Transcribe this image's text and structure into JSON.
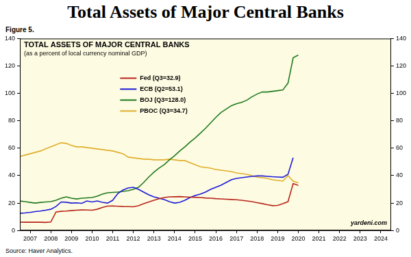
{
  "chart_data": {
    "type": "line",
    "title": "Total Assets of Major Central Banks",
    "figure_label": "Figure 5.",
    "chart_title": "TOTAL ASSETS OF MAJOR CENTRAL BANKS",
    "subtitle": "(as a percent of local currency nominal GDP)",
    "source": "Source: Haver Analytics.",
    "annotations": [
      "yardeni.com"
    ],
    "x": [
      2007,
      2007.25,
      2007.5,
      2007.75,
      2008,
      2008.25,
      2008.5,
      2008.75,
      2009,
      2009.25,
      2009.5,
      2009.75,
      2010,
      2010.25,
      2010.5,
      2010.75,
      2011,
      2011.25,
      2011.5,
      2011.75,
      2012,
      2012.25,
      2012.5,
      2012.75,
      2013,
      2013.25,
      2013.5,
      2013.75,
      2014,
      2014.25,
      2014.5,
      2014.75,
      2015,
      2015.25,
      2015.5,
      2015.75,
      2016,
      2016.25,
      2016.5,
      2016.75,
      2017,
      2017.25,
      2017.5,
      2017.75,
      2018,
      2018.25,
      2018.5,
      2018.75,
      2019,
      2019.25,
      2019.5,
      2019.75,
      2020,
      2020.25,
      2020.5
    ],
    "series": [
      {
        "name": "Fed (Q3=32.9)",
        "color": "#b8231b",
        "values": [
          6.1,
          6.0,
          6.0,
          6.1,
          6.0,
          5.9,
          6.2,
          13.5,
          14.0,
          14.2,
          14.5,
          14.8,
          15.0,
          14.9,
          14.8,
          15.5,
          16.8,
          17.8,
          17.9,
          17.7,
          17.5,
          17.4,
          17.3,
          18.0,
          19.5,
          20.8,
          22.0,
          23.2,
          24.0,
          24.5,
          24.6,
          24.7,
          24.5,
          24.3,
          24.2,
          24.0,
          23.7,
          23.5,
          23.2,
          23.0,
          22.8,
          22.6,
          22.4,
          22.0,
          21.5,
          21.0,
          20.3,
          19.6,
          18.8,
          18.1,
          18.3,
          19.5,
          21.0,
          34.2,
          32.9
        ]
      },
      {
        "name": "ECB (Q2=53.1)",
        "color": "#1c1ad8",
        "values": [
          12.5,
          12.8,
          13.2,
          13.8,
          14.2,
          14.8,
          15.5,
          17.5,
          20.8,
          20.6,
          20.0,
          20.2,
          19.8,
          21.5,
          20.8,
          21.5,
          20.5,
          20.0,
          22.0,
          27.0,
          29.5,
          31.0,
          31.5,
          30.0,
          28.0,
          26.0,
          24.5,
          23.5,
          22.5,
          21.0,
          20.0,
          20.5,
          22.0,
          24.0,
          25.5,
          26.5,
          28.0,
          30.0,
          31.5,
          33.0,
          35.0,
          37.0,
          38.0,
          38.5,
          39.0,
          39.5,
          39.8,
          39.8,
          39.5,
          39.2,
          39.0,
          38.8,
          41.0,
          53.1,
          null
        ]
      },
      {
        "name": "BOJ (Q3=128.0)",
        "color": "#1f7a1f",
        "values": [
          21.5,
          21.0,
          20.5,
          20.0,
          20.5,
          20.8,
          21.0,
          22.0,
          23.5,
          24.5,
          23.5,
          23.0,
          23.5,
          23.8,
          24.0,
          25.0,
          26.5,
          27.5,
          27.8,
          28.0,
          28.5,
          29.0,
          30.0,
          31.5,
          35.0,
          39.0,
          42.5,
          45.5,
          48.0,
          51.5,
          54.5,
          58.0,
          61.0,
          64.5,
          67.5,
          71.0,
          74.5,
          78.5,
          82.5,
          86.0,
          88.5,
          91.0,
          92.5,
          93.5,
          95.0,
          97.5,
          99.5,
          101.0,
          101.0,
          101.5,
          102.0,
          102.5,
          107.5,
          126.0,
          128.0
        ]
      },
      {
        "name": "PBOC (Q3=34.7)",
        "color": "#e0ae2c",
        "values": [
          54.0,
          55.0,
          56.0,
          57.0,
          58.0,
          59.5,
          61.0,
          62.5,
          64.0,
          63.5,
          62.0,
          61.0,
          61.0,
          60.5,
          60.0,
          59.5,
          59.0,
          58.5,
          58.0,
          57.0,
          56.0,
          53.5,
          53.0,
          52.5,
          52.0,
          52.0,
          51.5,
          51.5,
          51.5,
          52.0,
          51.5,
          51.0,
          51.0,
          49.5,
          48.0,
          46.5,
          46.0,
          45.5,
          44.5,
          44.0,
          43.5,
          43.0,
          42.0,
          41.5,
          41.0,
          40.0,
          39.0,
          38.5,
          38.0,
          37.0,
          36.5,
          36.0,
          40.0,
          36.0,
          34.7
        ]
      }
    ],
    "xlim": [
      2007,
      2025
    ],
    "xticks": [
      {
        "value": 2007.5,
        "label": "2007"
      },
      {
        "value": 2008.5,
        "label": "2008"
      },
      {
        "value": 2009.5,
        "label": "2009"
      },
      {
        "value": 2010.5,
        "label": "2010"
      },
      {
        "value": 2011.5,
        "label": "2011"
      },
      {
        "value": 2012.5,
        "label": "2012"
      },
      {
        "value": 2013.5,
        "label": "2013"
      },
      {
        "value": 2014.5,
        "label": "2014"
      },
      {
        "value": 2015.5,
        "label": "2015"
      },
      {
        "value": 2016.5,
        "label": "2016"
      },
      {
        "value": 2017.5,
        "label": "2017"
      },
      {
        "value": 2018.5,
        "label": "2018"
      },
      {
        "value": 2019.5,
        "label": "2019"
      },
      {
        "value": 2020.5,
        "label": "2020"
      },
      {
        "value": 2021.5,
        "label": "2021"
      },
      {
        "value": 2022.5,
        "label": "2022"
      },
      {
        "value": 2023.5,
        "label": "2023"
      },
      {
        "value": 2024.5,
        "label": "2024"
      }
    ],
    "ylim": [
      0,
      140
    ],
    "yticks": [
      0,
      20,
      40,
      60,
      80,
      100,
      120,
      140
    ],
    "y2lim": [
      0,
      140
    ],
    "y2ticks": [
      0,
      20,
      40,
      60,
      80,
      100,
      120,
      140
    ],
    "grid": false,
    "legend": "upper left"
  }
}
